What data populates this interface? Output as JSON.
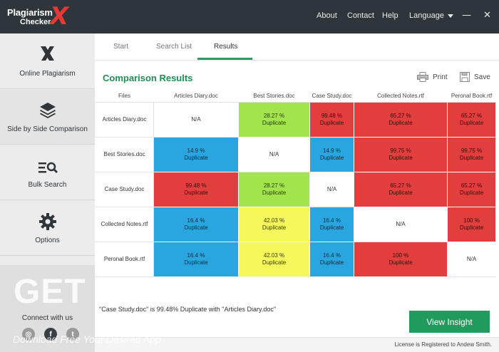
{
  "app": {
    "logo_line1": "Plagiarism",
    "logo_line2": "Checker",
    "logo_x": "X",
    "brand_color": "#2e353b",
    "accent_color": "#219a5e"
  },
  "header": {
    "nav": [
      "About",
      "Contact",
      "Help"
    ],
    "language_label": "Language",
    "minimize_glyph": "—",
    "close_glyph": "✕"
  },
  "sidebar": {
    "items": [
      {
        "label": "Online Plagiarism",
        "icon": "x-logo-icon"
      },
      {
        "label": "Side by Side Comparison",
        "icon": "layers-icon"
      },
      {
        "label": "Bulk Search",
        "icon": "list-search-icon"
      },
      {
        "label": "Options",
        "icon": "gear-icon"
      }
    ],
    "connect_label": "Connect with us",
    "socials": [
      {
        "glyph": "◎",
        "icon": "dribbble-icon"
      },
      {
        "glyph": "f",
        "icon": "facebook-icon"
      },
      {
        "glyph": "t",
        "icon": "twitter-icon"
      }
    ]
  },
  "tabs": [
    "Start",
    "Search List",
    "Results"
  ],
  "active_tab": "Results",
  "main": {
    "title": "Comparison Results",
    "print_label": "Print",
    "save_label": "Save"
  },
  "table": {
    "corner_header": "Files",
    "columns": [
      "Articles Diary.doc",
      "Best Stories.doc",
      "Case Study.doc",
      "Collected Notes.rtf",
      "Peronal Book.rtf"
    ],
    "rows": [
      {
        "file": "Articles Diary.doc",
        "cells": [
          {
            "pct": "N/A",
            "label": "",
            "color": "na"
          },
          {
            "pct": "28.27 %",
            "label": "Duplicate",
            "color": "green"
          },
          {
            "pct": "99.48 %",
            "label": "Duplicate",
            "color": "red"
          },
          {
            "pct": "65.27 %",
            "label": "Duplicate",
            "color": "red"
          },
          {
            "pct": "65.27 %",
            "label": "Duplicate",
            "color": "red"
          }
        ]
      },
      {
        "file": "Best Stories.doc",
        "cells": [
          {
            "pct": "14.9 %",
            "label": "Duplicate",
            "color": "blue"
          },
          {
            "pct": "N/A",
            "label": "",
            "color": "na"
          },
          {
            "pct": "14.9 %",
            "label": "Duplicate",
            "color": "blue"
          },
          {
            "pct": "99.75 %",
            "label": "Duplicate",
            "color": "red"
          },
          {
            "pct": "99.75 %",
            "label": "Duplicate",
            "color": "red"
          }
        ]
      },
      {
        "file": "Case Study.doc",
        "cells": [
          {
            "pct": "99.48 %",
            "label": "Duplicate",
            "color": "red"
          },
          {
            "pct": "28.27 %",
            "label": "Duplicate",
            "color": "green"
          },
          {
            "pct": "N/A",
            "label": "",
            "color": "na"
          },
          {
            "pct": "65.27 %",
            "label": "Duplicate",
            "color": "red"
          },
          {
            "pct": "65.27 %",
            "label": "Duplicate",
            "color": "red"
          }
        ]
      },
      {
        "file": "Collected Notes.rtf",
        "cells": [
          {
            "pct": "16.4 %",
            "label": "Duplicate",
            "color": "blue"
          },
          {
            "pct": "42.03 %",
            "label": "Duplicate",
            "color": "yellow"
          },
          {
            "pct": "16.4 %",
            "label": "Duplicate",
            "color": "blue"
          },
          {
            "pct": "N/A",
            "label": "",
            "color": "na"
          },
          {
            "pct": "100 %",
            "label": "Duplicate",
            "color": "red"
          }
        ]
      },
      {
        "file": "Peronal Book.rtf",
        "cells": [
          {
            "pct": "16.4 %",
            "label": "Duplicate",
            "color": "blue"
          },
          {
            "pct": "42.03 %",
            "label": "Duplicate",
            "color": "yellow"
          },
          {
            "pct": "16.4 %",
            "label": "Duplicate",
            "color": "blue"
          },
          {
            "pct": "100 %",
            "label": "Duplicate",
            "color": "red"
          },
          {
            "pct": "N/A",
            "label": "",
            "color": "na"
          }
        ]
      }
    ],
    "colors": {
      "blue": "#29a6df",
      "green": "#a3e34d",
      "red": "#e23e3e",
      "yellow": "#f6f75a"
    }
  },
  "status_text": "\"Case Study.doc\" is 99.48% Duplicate with \"Articles Diary.doc\"",
  "view_insight_label": "View Insight",
  "license_text": "License is Registered to Andew Smith.",
  "watermark": {
    "big": "GET INTO PC",
    "small": "Download Free Your Desired App"
  }
}
